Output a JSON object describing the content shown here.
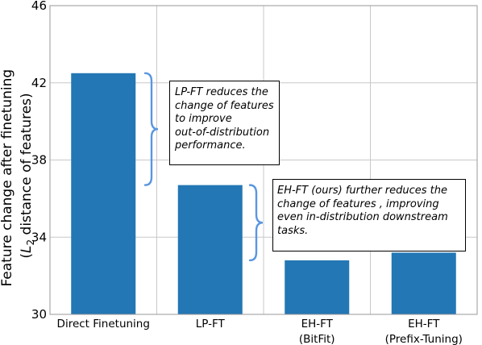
{
  "chart_data": {
    "type": "bar",
    "categories": [
      [
        "Direct Finetuning"
      ],
      [
        "LP-FT"
      ],
      [
        "EH-FT",
        "(BitFit)"
      ],
      [
        "EH-FT",
        "(Prefix-Tuning)"
      ]
    ],
    "values": [
      42.5,
      36.7,
      32.8,
      33.2
    ],
    "ylabel_lines": [
      "Feature change after finetuning",
      "(L2 distance of features)"
    ],
    "ylim": [
      30,
      46
    ],
    "yticks": [
      30,
      34,
      38,
      42,
      46
    ],
    "grid": true,
    "bar_color": "#2377b4",
    "brace_color": "#5a97e0",
    "annotations": [
      {
        "lines": [
          "LP-FT reduces the",
          "change of features",
          "to improve",
          "out-of-distribution",
          "performance."
        ],
        "brace_from": 42.5,
        "brace_to": 36.7
      },
      {
        "lines": [
          "EH-FT (ours) further reduces the",
          "change of features , improving",
          "even in-distribution downstream",
          "tasks."
        ],
        "brace_from": 36.7,
        "brace_to": 32.8
      }
    ]
  }
}
